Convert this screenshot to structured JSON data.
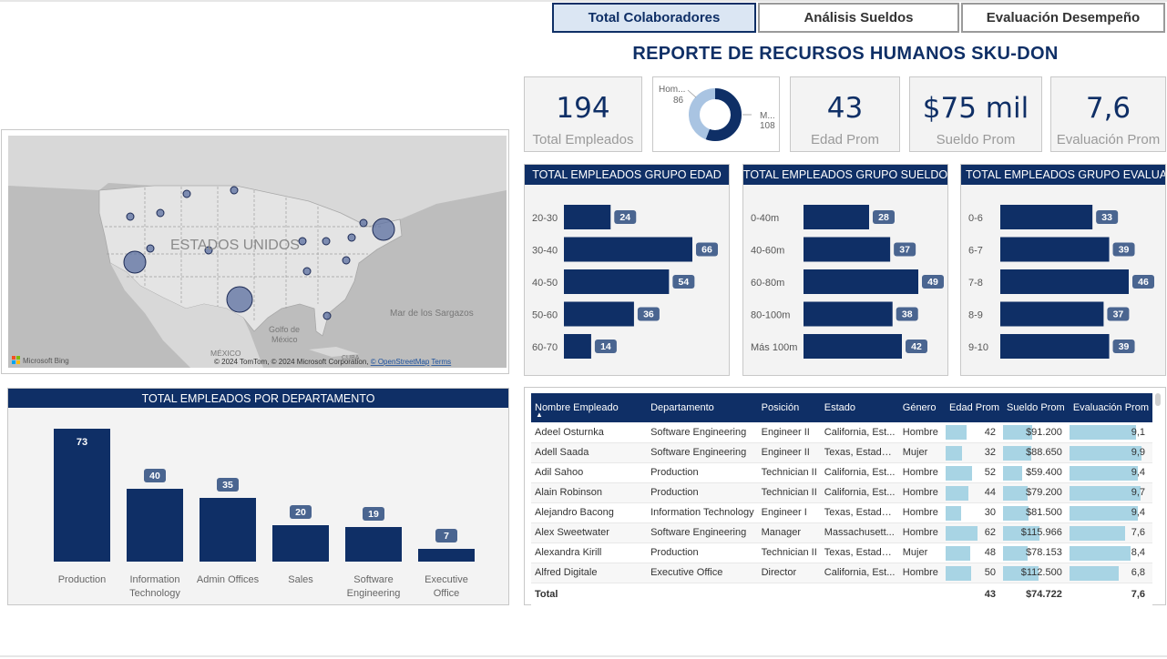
{
  "tabs": [
    {
      "label": "Total Colaboradores",
      "active": true
    },
    {
      "label": "Análisis Sueldos",
      "active": false
    },
    {
      "label": "Evaluación Desempeño",
      "active": false
    }
  ],
  "report_title": "REPORTE DE RECURSOS HUMANOS SKU-DON",
  "kpis": {
    "total_empleados": {
      "value": "194",
      "label": "Total Empleados"
    },
    "edad_prom": {
      "value": "43",
      "label": "Edad Prom"
    },
    "sueldo_prom": {
      "value": "$75 mil",
      "label": "Sueldo Prom"
    },
    "evaluacion_prom": {
      "value": "7,6",
      "label": "Evaluación Prom"
    }
  },
  "gender_donut": {
    "hombre_label": "Hom...",
    "hombre_value": "86",
    "mujer_label": "M...",
    "mujer_value": "108",
    "colors": {
      "hombre": "#0f2f66",
      "mujer": "#a9c4e2"
    }
  },
  "map": {
    "country_label": "ESTADOS UNIDOS",
    "gulf_label": "Golfo de\nMéxico",
    "sargazos_label": "Mar de los Sargazos",
    "mexico_label": "MÉXICO",
    "cuba_label": "CUBA",
    "bing_label": "Microsoft Bing",
    "attribution": "© 2024 TomTom, © 2024 Microsoft Corporation, ",
    "osm_link": "© OpenStreetMap",
    "terms_link": "Terms"
  },
  "chart_data": [
    {
      "type": "bar",
      "orientation": "horizontal",
      "title": "TOTAL EMPLEADOS GRUPO EDAD",
      "categories": [
        "20-30",
        "30-40",
        "40-50",
        "50-60",
        "60-70"
      ],
      "values": [
        24,
        66,
        54,
        36,
        14
      ],
      "color": "#0f2f66"
    },
    {
      "type": "bar",
      "orientation": "horizontal",
      "title": "TOTAL EMPLEADOS GRUPO SUELDO",
      "categories": [
        "0-40m",
        "40-60m",
        "60-80m",
        "80-100m",
        "Más 100m"
      ],
      "values": [
        28,
        37,
        49,
        38,
        42
      ],
      "color": "#0f2f66"
    },
    {
      "type": "bar",
      "orientation": "horizontal",
      "title": "TOTAL EMPLEADOS GRUPO EVALUACI...",
      "categories": [
        "0-6",
        "6-7",
        "7-8",
        "8-9",
        "9-10"
      ],
      "values": [
        33,
        39,
        46,
        37,
        39
      ],
      "color": "#0f2f66"
    },
    {
      "type": "bar",
      "orientation": "vertical",
      "title": "TOTAL EMPLEADOS POR DEPARTAMENTO",
      "categories": [
        "Production",
        "Information Technology",
        "Admin Offices",
        "Sales",
        "Software Engineering",
        "Executive Office"
      ],
      "values": [
        73,
        40,
        35,
        20,
        19,
        7
      ],
      "color": "#0f2f66"
    }
  ],
  "table": {
    "columns": [
      "Nombre Empleado",
      "Departamento",
      "Posición",
      "Estado",
      "Género",
      "Edad Prom",
      "Sueldo Prom",
      "Evaluación Prom"
    ],
    "rows": [
      {
        "nombre": "Adeel Osturnka",
        "depto": "Software Engineering",
        "pos": "Engineer II",
        "estado": "California, Est...",
        "genero": "Hombre",
        "edad": "42",
        "sueldo": "$91.200",
        "eval": "9,1",
        "edad_n": 42,
        "sueldo_n": 91200,
        "eval_n": 9.1
      },
      {
        "nombre": "Adell Saada",
        "depto": "Software Engineering",
        "pos": "Engineer II",
        "estado": "Texas, Estados...",
        "genero": "Mujer",
        "edad": "32",
        "sueldo": "$88.650",
        "eval": "9,9",
        "edad_n": 32,
        "sueldo_n": 88650,
        "eval_n": 9.9
      },
      {
        "nombre": "Adil Sahoo",
        "depto": "Production",
        "pos": "Technician II",
        "estado": "California, Est...",
        "genero": "Hombre",
        "edad": "52",
        "sueldo": "$59.400",
        "eval": "9,4",
        "edad_n": 52,
        "sueldo_n": 59400,
        "eval_n": 9.4
      },
      {
        "nombre": "Alain Robinson",
        "depto": "Production",
        "pos": "Technician II",
        "estado": "California, Est...",
        "genero": "Hombre",
        "edad": "44",
        "sueldo": "$79.200",
        "eval": "9,7",
        "edad_n": 44,
        "sueldo_n": 79200,
        "eval_n": 9.7
      },
      {
        "nombre": "Alejandro Bacong",
        "depto": "Information Technology",
        "pos": "Engineer I",
        "estado": "Texas, Estados...",
        "genero": "Hombre",
        "edad": "30",
        "sueldo": "$81.500",
        "eval": "9,4",
        "edad_n": 30,
        "sueldo_n": 81500,
        "eval_n": 9.4
      },
      {
        "nombre": "Alex Sweetwater",
        "depto": "Software Engineering",
        "pos": "Manager",
        "estado": "Massachusett...",
        "genero": "Hombre",
        "edad": "62",
        "sueldo": "$115.966",
        "eval": "7,6",
        "edad_n": 62,
        "sueldo_n": 115966,
        "eval_n": 7.6
      },
      {
        "nombre": "Alexandra Kirill",
        "depto": "Production",
        "pos": "Technician II",
        "estado": "Texas, Estados...",
        "genero": "Mujer",
        "edad": "48",
        "sueldo": "$78.153",
        "eval": "8,4",
        "edad_n": 48,
        "sueldo_n": 78153,
        "eval_n": 8.4
      },
      {
        "nombre": "Alfred Digitale",
        "depto": "Executive Office",
        "pos": "Director",
        "estado": "California, Est...",
        "genero": "Hombre",
        "edad": "50",
        "sueldo": "$112.500",
        "eval": "6,8",
        "edad_n": 50,
        "sueldo_n": 112500,
        "eval_n": 6.8
      }
    ],
    "total": {
      "label": "Total",
      "edad": "43",
      "sueldo": "$74.722",
      "eval": "7,6"
    }
  }
}
